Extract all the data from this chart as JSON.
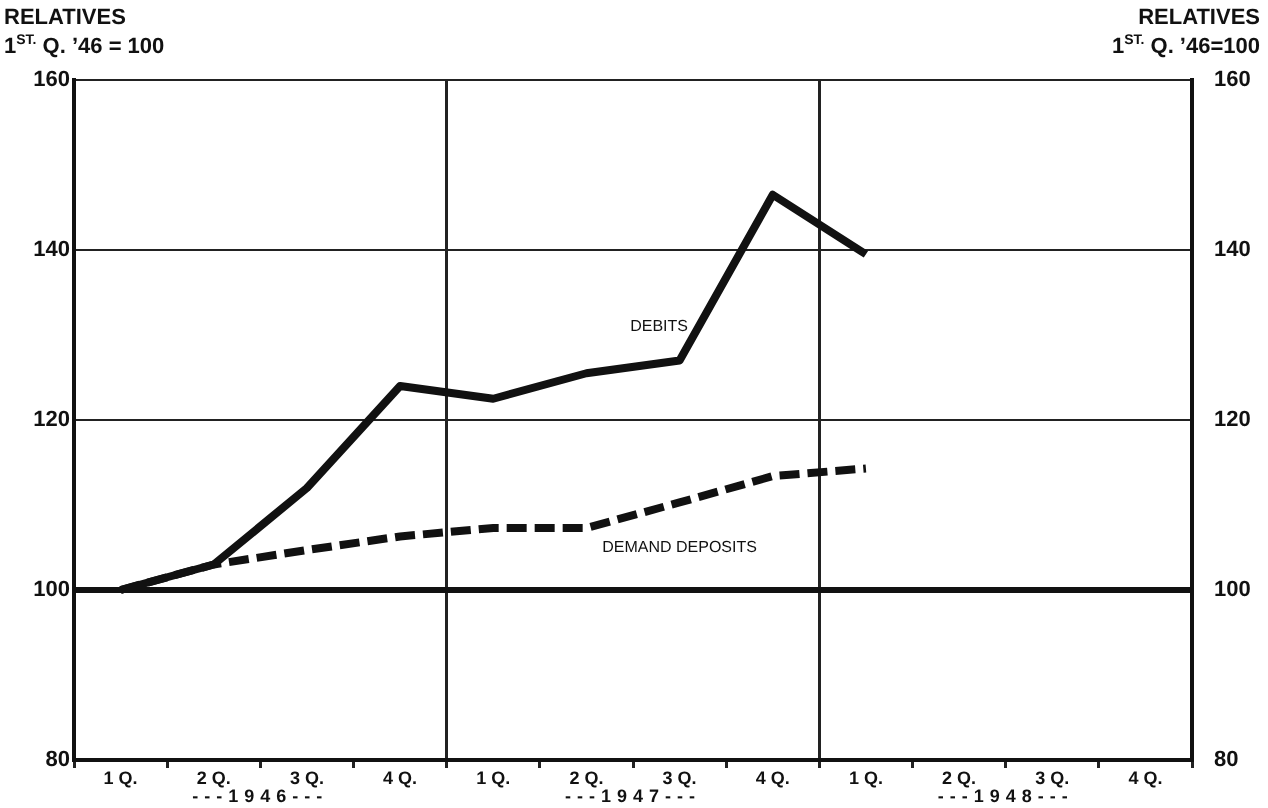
{
  "chart_data": {
    "type": "line",
    "ylabel": "RELATIVES\n1$^{ST.}$ Q. ’46 = 100",
    "y2label": "RELATIVES\n1$^{ST.}$ Q. ’46=100",
    "categories": [
      "1 Q.",
      "2 Q.",
      "3 Q.",
      "4 Q.",
      "1 Q.",
      "2 Q.",
      "3 Q.",
      "4 Q.",
      "1 Q.",
      "2 Q.",
      "3 Q.",
      "4 Q."
    ],
    "annotations": [
      "---1946---",
      "---1947---",
      "---1948---"
    ],
    "series": [
      {
        "name": "DEBITS",
        "color": "#111111",
        "line_style": "solid",
        "values": [
          100,
          103,
          112,
          124,
          122.5,
          125.5,
          127,
          146.5,
          139.5,
          null,
          null,
          null
        ]
      },
      {
        "name": "DEMAND DEPOSITS",
        "color": "#111111",
        "line_style": "dashed",
        "values": [
          100,
          103,
          104.7,
          106.3,
          107.3,
          107.3,
          110.3,
          113.4,
          114.3,
          null,
          null,
          null
        ]
      }
    ],
    "ylim": [
      80,
      160
    ],
    "yticks": [
      80,
      100,
      120,
      140,
      160
    ],
    "y2lim": [
      80,
      160
    ],
    "y2ticks": [
      80,
      100,
      120,
      140,
      160
    ],
    "ref_lines": [
      {
        "axis": "y",
        "value": 100,
        "color": "#111111"
      }
    ],
    "grid": true,
    "legend": false,
    "marker": "none"
  }
}
